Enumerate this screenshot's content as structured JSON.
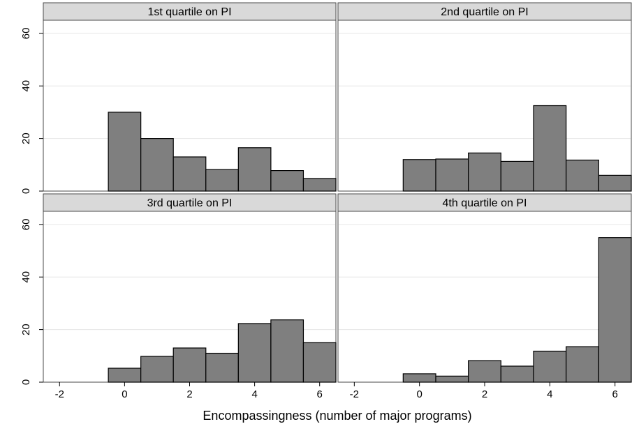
{
  "chart_data": {
    "type": "bar",
    "subtype": "histogram-facets",
    "xlabel": "Encompassingness (number of major programs)",
    "ylabel": "",
    "xlim": [
      -2.5,
      6.5
    ],
    "ylim": [
      0,
      65
    ],
    "x_ticks": [
      -2,
      0,
      2,
      4,
      6
    ],
    "y_ticks": [
      0,
      20,
      40,
      60
    ],
    "bins": [
      0,
      1,
      2,
      3,
      4,
      5,
      6
    ],
    "bin_width": 1,
    "grid": true,
    "bar_color": "#7f7f7f",
    "strip_color": "#d9d9d9",
    "panels": [
      {
        "title": "1st quartile on PI",
        "values": [
          30,
          20,
          13,
          8.2,
          16.5,
          7.8,
          4.8
        ]
      },
      {
        "title": "2nd quartile on PI",
        "values": [
          12,
          12.2,
          14.5,
          11.3,
          32.5,
          11.8,
          6
        ]
      },
      {
        "title": "3rd quartile on PI",
        "values": [
          5.3,
          9.8,
          13,
          11,
          22.3,
          23.7,
          15
        ]
      },
      {
        "title": "4th quartile on PI",
        "values": [
          3.2,
          2.3,
          8.2,
          6.1,
          11.8,
          13.5,
          55
        ]
      }
    ]
  }
}
